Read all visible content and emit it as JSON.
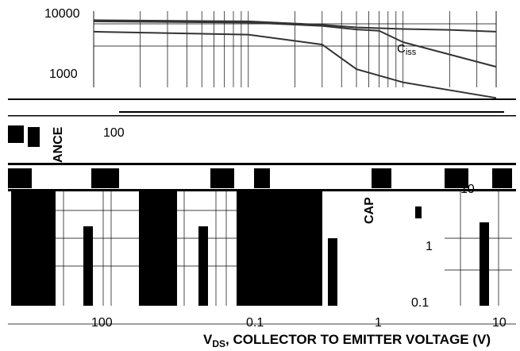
{
  "chart_data": {
    "type": "line",
    "title": "",
    "xlabel": "V_DS, COLLECTOR TO EMITTER VOLTAGE (V)",
    "xlabel_parts": {
      "main": "V",
      "sub": "DS",
      "rest": ", COLLECTOR TO EMITTER VOLTAGE (V)"
    },
    "ylabel": "CAPACITANCE",
    "ylabel_fragments": [
      "ANCE",
      "CAP"
    ],
    "x_scale": "log",
    "y_scale": "log",
    "y_tick_labels": [
      "10000",
      "1000",
      "100",
      "10",
      "1",
      "0.1"
    ],
    "x_tick_labels": [
      "100",
      "0.1",
      "1",
      "10"
    ],
    "grid": true,
    "legend": "none",
    "series": [
      {
        "name": "",
        "label_main": "C",
        "label_sub": "iss",
        "points": [
          [
            0.1,
            8000
          ],
          [
            1,
            7600
          ],
          [
            3,
            6500
          ],
          [
            5,
            5800
          ],
          [
            10,
            5400
          ],
          [
            20,
            5200
          ],
          [
            40,
            4800
          ]
        ]
      },
      {
        "name": "",
        "label_main": "",
        "label_sub": "",
        "points": [
          [
            0.1,
            7600
          ],
          [
            1,
            7200
          ],
          [
            3,
            6200
          ],
          [
            5,
            5300
          ],
          [
            7,
            5000
          ],
          [
            10,
            3000
          ],
          [
            40,
            1000
          ]
        ]
      },
      {
        "name": "",
        "label_main": "",
        "label_sub": "",
        "points": [
          [
            0.1,
            4800
          ],
          [
            1,
            4200
          ],
          [
            3,
            2700
          ],
          [
            5,
            900
          ],
          [
            10,
            500
          ],
          [
            40,
            250
          ]
        ]
      }
    ]
  }
}
